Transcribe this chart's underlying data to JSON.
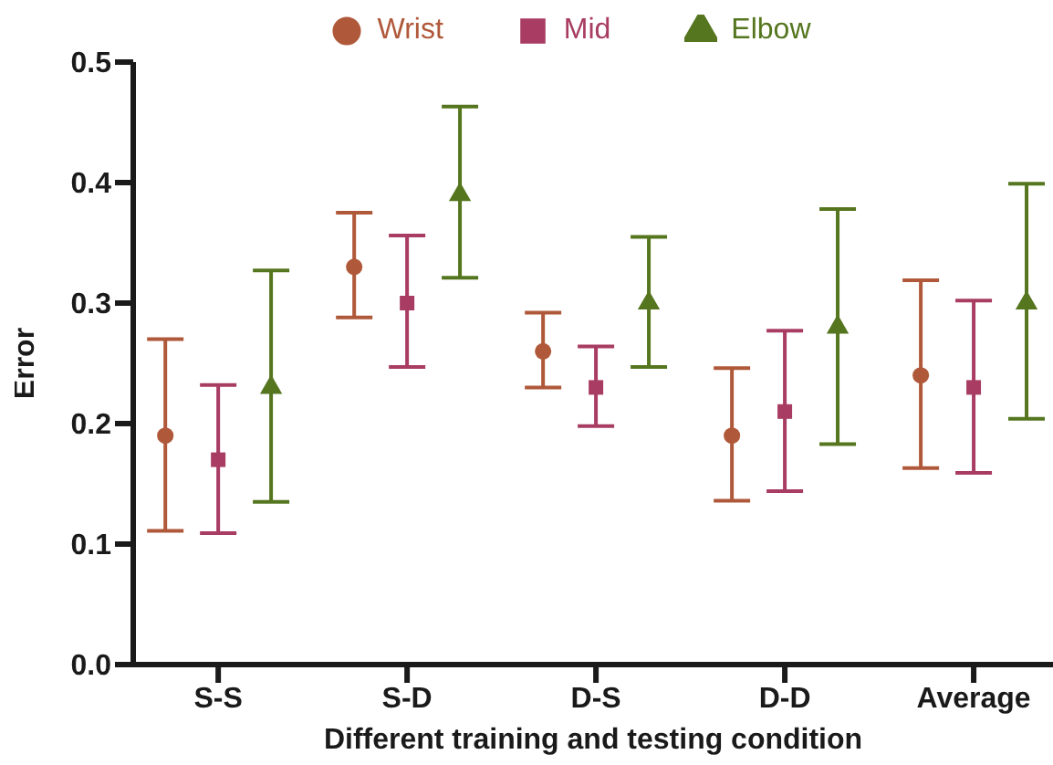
{
  "chart_data": {
    "type": "scatter",
    "xlabel": "Different training and testing condition",
    "ylabel": "Error",
    "categories": [
      "S-S",
      "S-D",
      "D-S",
      "D-D",
      "Average"
    ],
    "series": [
      {
        "name": "Wrist",
        "color": "#b0593a",
        "marker": "circle",
        "values": [
          0.19,
          0.33,
          0.26,
          0.19,
          0.24
        ],
        "errors": [
          [
            0.111,
            0.27
          ],
          [
            0.288,
            0.375
          ],
          [
            0.23,
            0.292
          ],
          [
            0.136,
            0.246
          ],
          [
            0.163,
            0.319
          ]
        ]
      },
      {
        "name": "Mid",
        "color": "#a83c62",
        "marker": "square",
        "values": [
          0.17,
          0.3,
          0.23,
          0.21,
          0.23
        ],
        "errors": [
          [
            0.109,
            0.232
          ],
          [
            0.247,
            0.356
          ],
          [
            0.198,
            0.264
          ],
          [
            0.144,
            0.277
          ],
          [
            0.159,
            0.302
          ]
        ]
      },
      {
        "name": "Elbow",
        "color": "#55761f",
        "marker": "triangle",
        "values": [
          0.23,
          0.39,
          0.3,
          0.28,
          0.3
        ],
        "errors": [
          [
            0.135,
            0.327
          ],
          [
            0.321,
            0.463
          ],
          [
            0.247,
            0.355
          ],
          [
            0.183,
            0.378
          ],
          [
            0.204,
            0.399
          ]
        ]
      }
    ],
    "ylim": [
      0,
      0.5
    ],
    "yticks": [
      {
        "value": 0,
        "label": "0.0"
      },
      0.1,
      0.2,
      0.3,
      0.4,
      0.5
    ],
    "legend": "top"
  }
}
